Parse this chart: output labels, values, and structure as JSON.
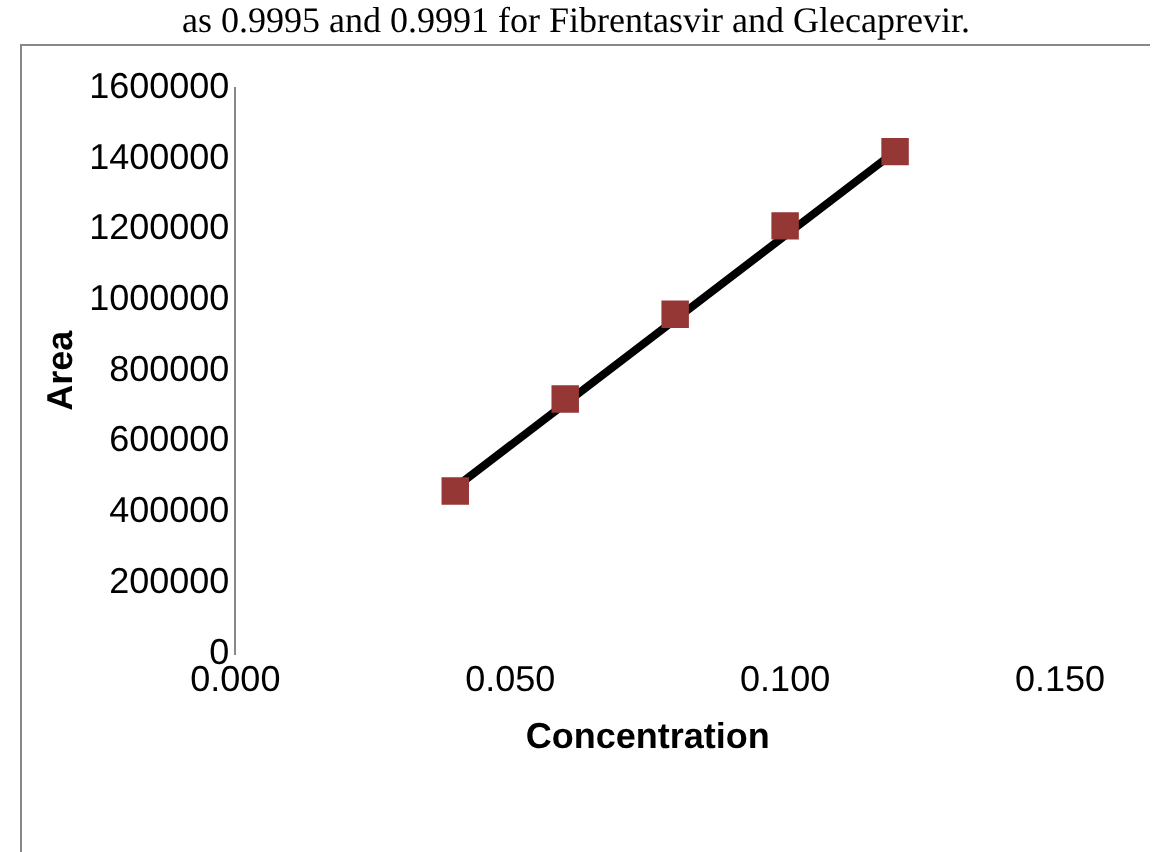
{
  "chart_data": {
    "type": "scatter",
    "xlabel": "Concentration",
    "ylabel": "Area",
    "annotations": [
      "as 0.9995 and 0.9991 for Fibrentasvir and Glecaprevir."
    ],
    "xlim": [
      0,
      0.15
    ],
    "xticks": [
      {
        "value": 0,
        "label": "0.000"
      },
      {
        "value": 0.05,
        "label": "0.050"
      },
      {
        "value": 0.1,
        "label": "0.100"
      },
      {
        "value": 0.15,
        "label": "0.150"
      }
    ],
    "ylim": [
      0,
      1600000
    ],
    "yticks": [
      0,
      200000,
      400000,
      600000,
      800000,
      1000000,
      1200000,
      1400000,
      1600000
    ],
    "grid": false,
    "legend": false,
    "marker": "square",
    "series": [
      {
        "color": "#953735",
        "x": [
          0.04,
          0.06,
          0.08,
          0.1,
          0.12
        ],
        "values": [
          460000,
          720000,
          960000,
          1210000,
          1420000
        ]
      },
      {
        "type": "line",
        "color": "#000000",
        "marker": "none",
        "x": [
          0.04,
          0.12
        ],
        "values": [
          470000,
          1420000
        ]
      }
    ]
  }
}
